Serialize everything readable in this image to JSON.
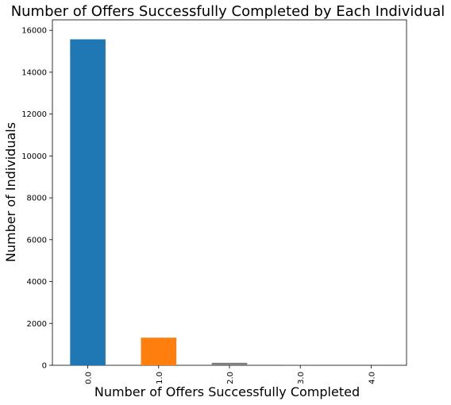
{
  "chart_data": {
    "type": "bar",
    "title": "Number of Offers Successfully Completed by Each Individual",
    "xlabel": "Number of Offers Successfully Completed",
    "ylabel": "Number of Individuals",
    "categories": [
      "0.0",
      "1.0",
      "2.0",
      "3.0",
      "4.0"
    ],
    "values": [
      15570,
      1320,
      120,
      5,
      1
    ],
    "colors": [
      "#1f77b4",
      "#ff7f0e",
      "#7f7f7f",
      "#7f7f7f",
      "#7f7f7f"
    ],
    "ylim": [
      0,
      16500
    ],
    "yticks": [
      0,
      2000,
      4000,
      6000,
      8000,
      10000,
      12000,
      14000,
      16000
    ],
    "grid": false,
    "legend": "none"
  }
}
